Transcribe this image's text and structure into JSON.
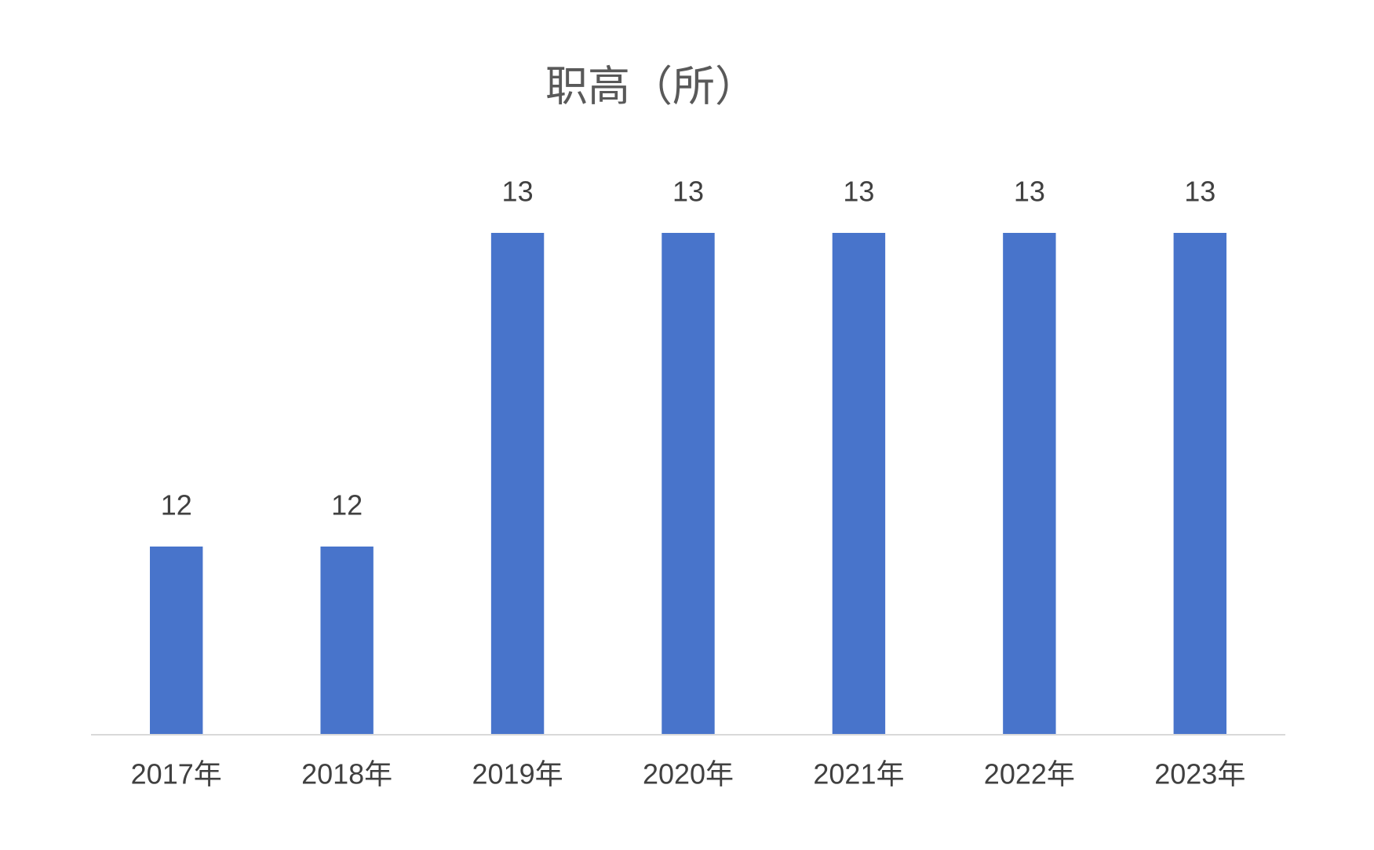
{
  "chart_data": {
    "type": "bar",
    "title": "职高（所）",
    "categories": [
      "2017年",
      "2018年",
      "2019年",
      "2020年",
      "2021年",
      "2022年",
      "2023年"
    ],
    "values": [
      12,
      12,
      13,
      13,
      13,
      13,
      13
    ],
    "color": "#4874cb",
    "ylim": [
      11.4,
      13.2
    ],
    "grid": false
  }
}
